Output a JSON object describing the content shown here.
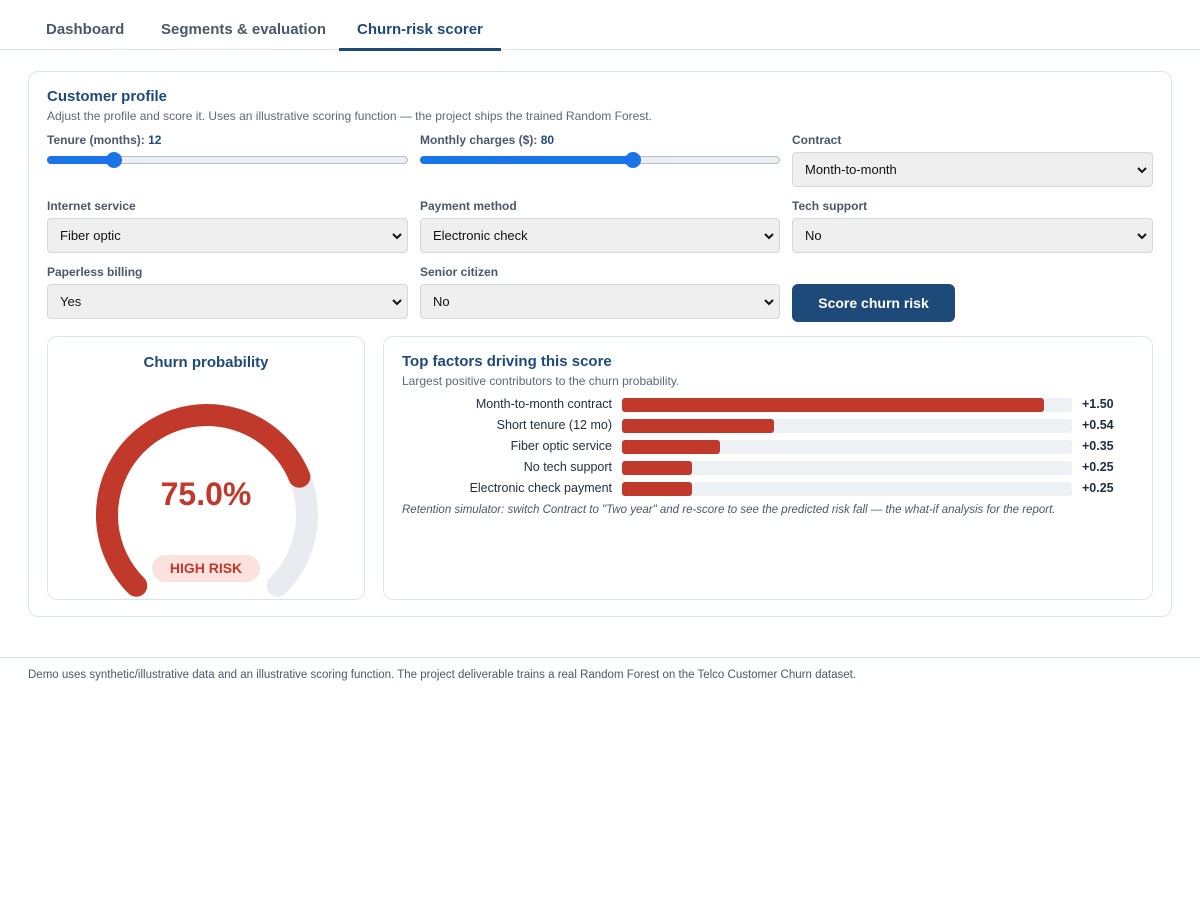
{
  "tabs": [
    {
      "label": "Dashboard",
      "active": false
    },
    {
      "label": "Segments & evaluation",
      "active": false
    },
    {
      "label": "Churn-risk scorer",
      "active": true
    }
  ],
  "profile": {
    "title": "Customer profile",
    "subtitle": "Adjust the profile and score it. Uses an illustrative scoring function — the project ships the trained Random Forest.",
    "tenure": {
      "label": "Tenure (months):",
      "value": "12",
      "fraction": 0.17
    },
    "charges": {
      "label": "Monthly charges ($):",
      "value": "80",
      "fraction": 0.595
    },
    "contract": {
      "label": "Contract",
      "value": "Month-to-month"
    },
    "internet": {
      "label": "Internet service",
      "value": "Fiber optic"
    },
    "payment": {
      "label": "Payment method",
      "value": "Electronic check"
    },
    "tech_support": {
      "label": "Tech support",
      "value": "No"
    },
    "paperless": {
      "label": "Paperless billing",
      "value": "Yes"
    },
    "senior": {
      "label": "Senior citizen",
      "value": "No"
    },
    "score_button": "Score churn risk"
  },
  "gauge": {
    "title": "Churn probability",
    "value_text": "75.0%",
    "fraction": 0.75,
    "badge": "HIGH RISK",
    "color": "#c0392b",
    "track_color": "#e8ecf1"
  },
  "factors": {
    "title": "Top factors driving this score",
    "subtitle": "Largest positive contributors to the churn probability.",
    "max_value": 1.6,
    "items": [
      {
        "label": "Month-to-month contract",
        "value": 1.5,
        "value_text": "+1.50"
      },
      {
        "label": "Short tenure (12 mo)",
        "value": 0.54,
        "value_text": "+0.54"
      },
      {
        "label": "Fiber optic service",
        "value": 0.35,
        "value_text": "+0.35"
      },
      {
        "label": "No tech support",
        "value": 0.25,
        "value_text": "+0.25"
      },
      {
        "label": "Electronic check payment",
        "value": 0.25,
        "value_text": "+0.25"
      }
    ],
    "note": "Retention simulator: switch Contract to \"Two year\" and re-score to see the predicted risk fall — the what-if analysis for the report."
  },
  "footer": "Demo uses synthetic/illustrative data and an illustrative scoring function. The project deliverable trains a real Random Forest on the Telco Customer Churn dataset."
}
